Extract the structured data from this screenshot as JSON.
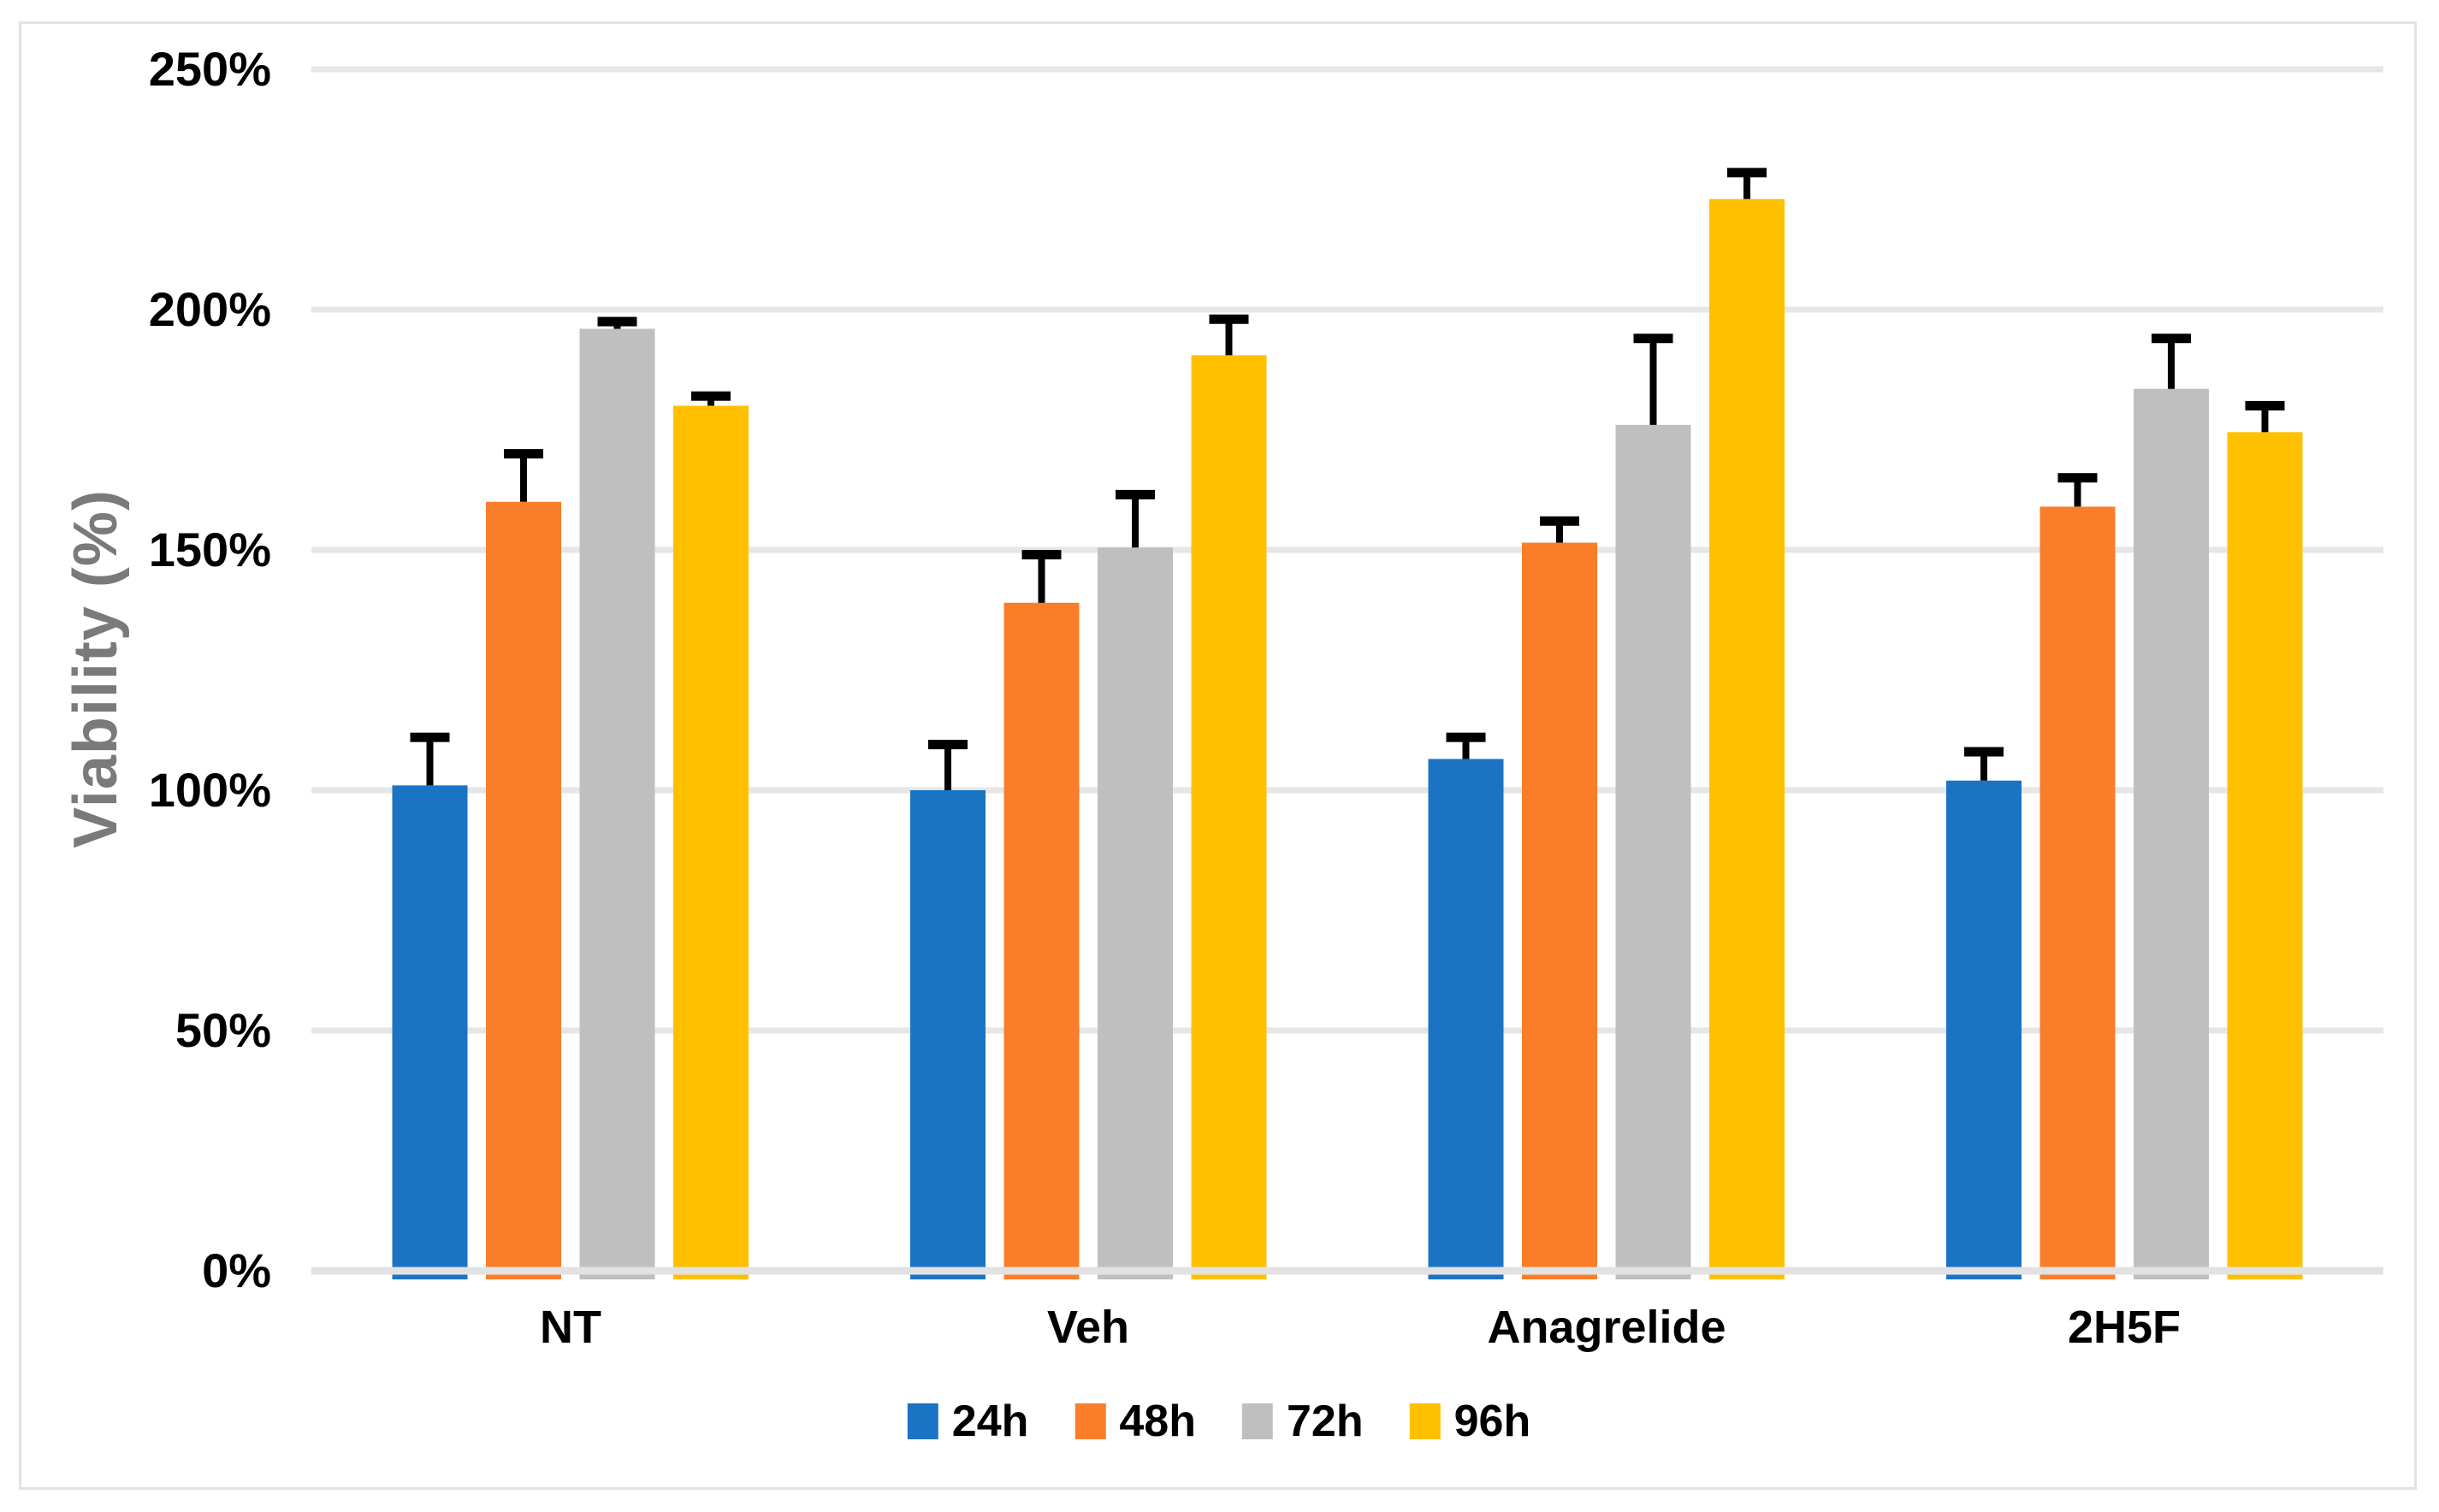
{
  "chart_data": {
    "type": "bar",
    "title": "",
    "ylabel": "Viability (%)",
    "xlabel": "",
    "categories": [
      "NT",
      "Veh",
      "Anagrelide",
      "2H5F"
    ],
    "series": [
      {
        "name": "24h",
        "color": "#1B73C4",
        "values": [
          101,
          100,
          106.5,
          102
        ],
        "errors_up": [
          10,
          9.5,
          4.5,
          6
        ]
      },
      {
        "name": "48h",
        "color": "#FA7D2A",
        "values": [
          160,
          139,
          151.5,
          159
        ],
        "errors_up": [
          10,
          10,
          4.5,
          6
        ]
      },
      {
        "name": "72h",
        "color": "#BFBFBF",
        "values": [
          196,
          150.5,
          176,
          183.5
        ],
        "errors_up": [
          1.5,
          11,
          18,
          10.5
        ]
      },
      {
        "name": "96h",
        "color": "#FFC000",
        "values": [
          180,
          190.5,
          223,
          174.5
        ],
        "errors_up": [
          2,
          7.5,
          5.5,
          5.5
        ]
      }
    ],
    "y_axis": {
      "min": 0,
      "max": 250,
      "step": 50,
      "tick_labels": [
        "0%",
        "50%",
        "100%",
        "150%",
        "200%",
        "250%"
      ]
    },
    "ylim": [
      0,
      250
    ],
    "grid": true,
    "gridline_color": "#E6E6E6",
    "baseline_color": "#E2E2E2",
    "error_bar_color": "#000000",
    "legend_position": "bottom",
    "legend_entries": [
      "24h",
      "48h",
      "72h",
      "96h"
    ]
  }
}
